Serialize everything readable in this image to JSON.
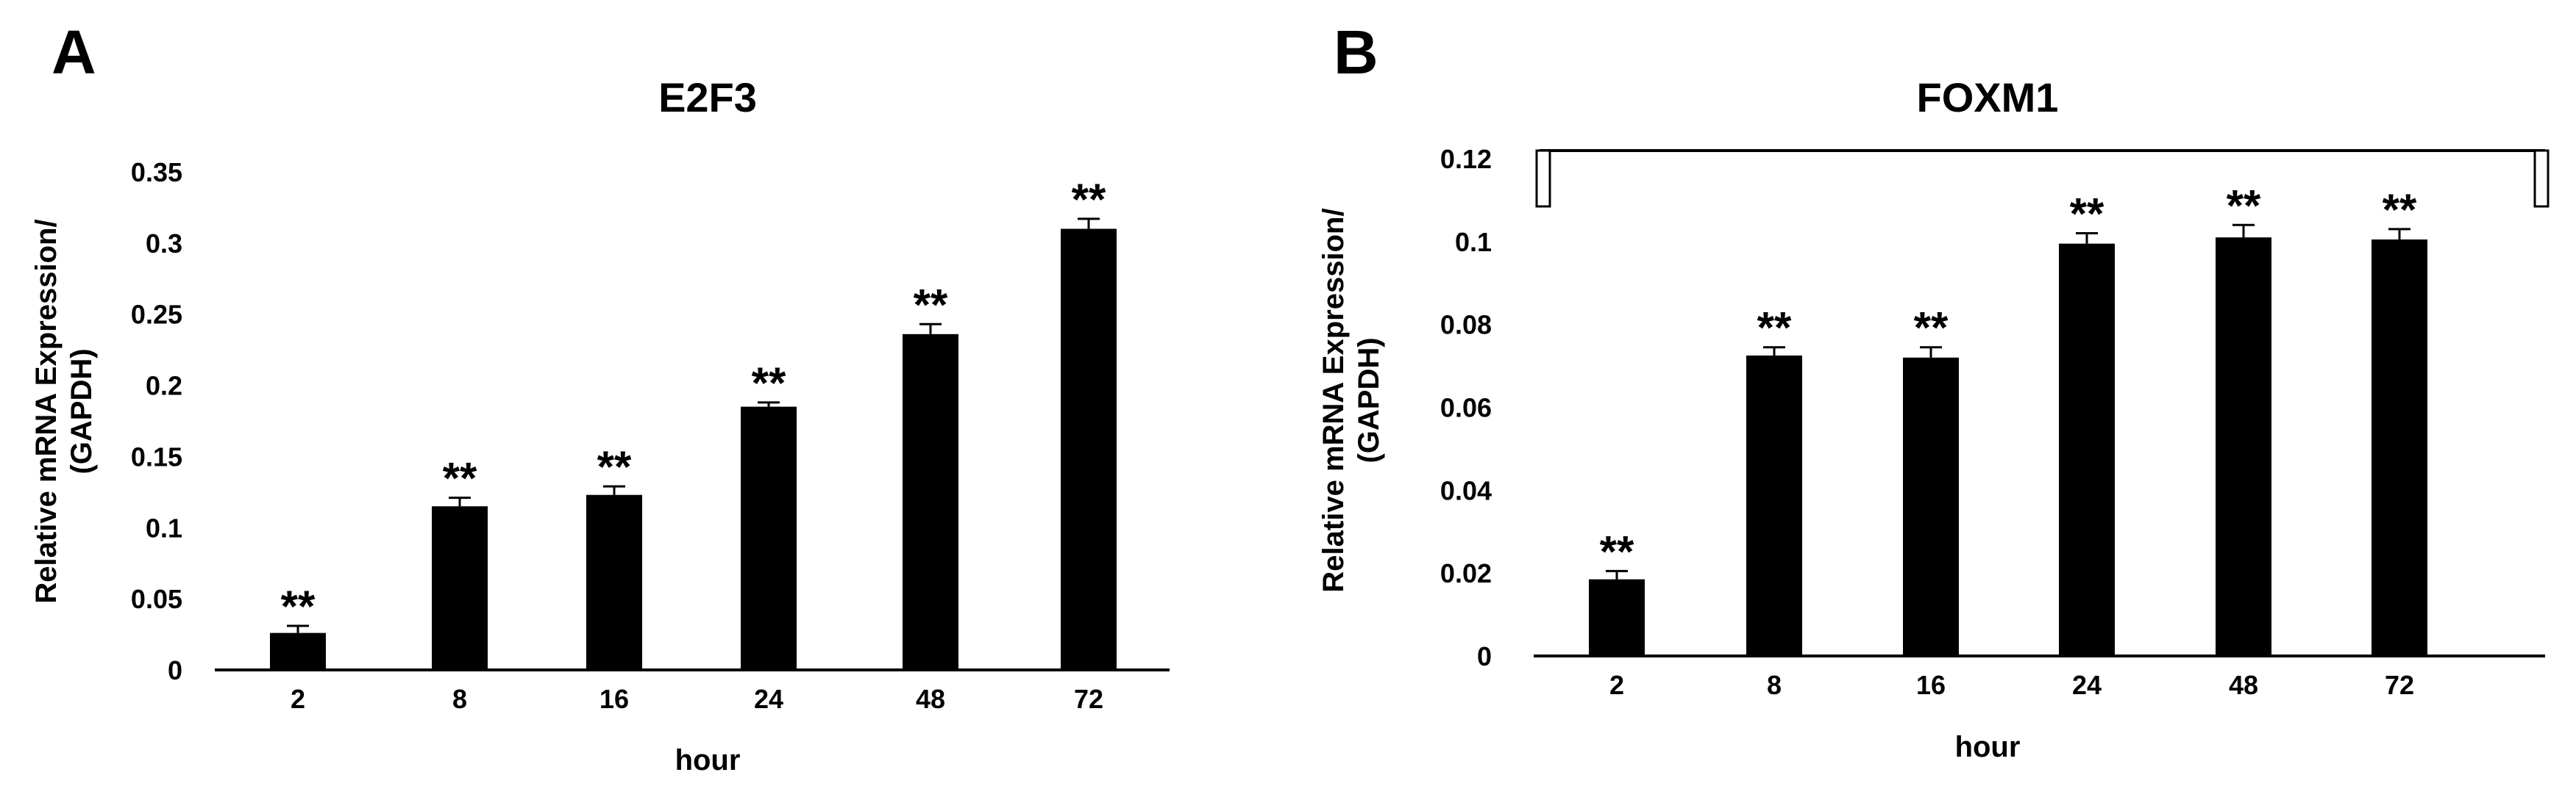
{
  "chart_data": [
    {
      "panel_label": "A",
      "type": "bar",
      "title": "E2F3",
      "xlabel": "hour",
      "ylabel_lines": [
        "Relative mRNA Expression/",
        "(GAPDH)"
      ],
      "categories": [
        "2",
        "8",
        "16",
        "24",
        "48",
        "72"
      ],
      "values": [
        0.026,
        0.115,
        0.123,
        0.185,
        0.236,
        0.31
      ],
      "errors": [
        0.005,
        0.006,
        0.006,
        0.003,
        0.007,
        0.007
      ],
      "annotations": [
        "**",
        "**",
        "**",
        "**",
        "**",
        "**"
      ],
      "ylim": [
        0,
        0.35
      ],
      "yticks": [
        "0",
        "0.05",
        "0.1",
        "0.15",
        "0.2",
        "0.25",
        "0.3",
        "0.35"
      ],
      "bar_color": "#000000",
      "grid": false,
      "legend": "none"
    },
    {
      "panel_label": "B",
      "type": "bar",
      "title": "FOXM1",
      "xlabel": "hour",
      "ylabel_lines": [
        "Relative mRNA Expression/",
        "(GAPDH)"
      ],
      "categories": [
        "2",
        "8",
        "16",
        "24",
        "48",
        "72"
      ],
      "values": [
        0.0185,
        0.0725,
        0.072,
        0.0995,
        0.101,
        0.1005
      ],
      "errors": [
        0.002,
        0.002,
        0.0025,
        0.0025,
        0.003,
        0.0025
      ],
      "annotations": [
        "**",
        "**",
        "**",
        "**",
        "**",
        "**"
      ],
      "ylim": [
        0,
        0.12
      ],
      "yticks": [
        "0",
        "0.02",
        "0.04",
        "0.06",
        "0.08",
        "0.1",
        "0.12"
      ],
      "bar_color": "#000000",
      "grid": false,
      "legend": "none",
      "bracket": true
    }
  ]
}
